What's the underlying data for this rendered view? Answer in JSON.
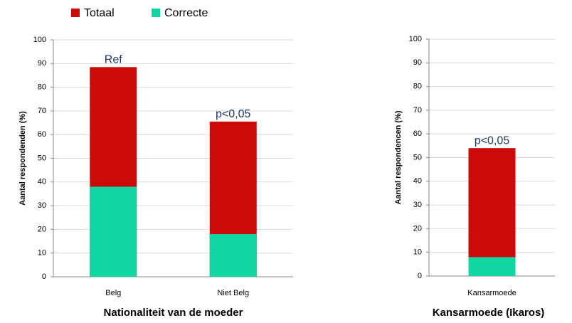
{
  "chart_data": [
    {
      "type": "bar",
      "x_label": "Nationaliteit van de moeder",
      "y_label": "Aantal respondenden (%)",
      "categories": [
        "Belg",
        "Niet Belg"
      ],
      "annotations": [
        "Ref",
        "p<0,05"
      ],
      "series": [
        {
          "name": "Totaal",
          "color": "#cc0a0a",
          "values": [
            88.5,
            65.5
          ]
        },
        {
          "name": "Correcte",
          "color": "#10d6a4",
          "values": [
            38,
            18
          ]
        }
      ],
      "ylim": [
        0,
        100
      ],
      "yticks": [
        0,
        10,
        20,
        30,
        40,
        50,
        60,
        70,
        80,
        90,
        100
      ],
      "grid": true
    },
    {
      "type": "bar",
      "x_label": "Kansarmoede (Ikaros)",
      "y_label": "Aantal respondencen (%)",
      "categories": [
        "Kansarmoede"
      ],
      "annotations": [
        "p<0,05"
      ],
      "series": [
        {
          "color": "#cc0a0a",
          "values": [
            54
          ]
        },
        {
          "color": "#10d6a4",
          "values": [
            8
          ]
        }
      ],
      "ylim": [
        0,
        100
      ],
      "yticks": [
        0,
        10,
        20,
        30,
        40,
        50,
        60,
        70,
        80,
        90,
        100
      ],
      "grid": true
    }
  ]
}
